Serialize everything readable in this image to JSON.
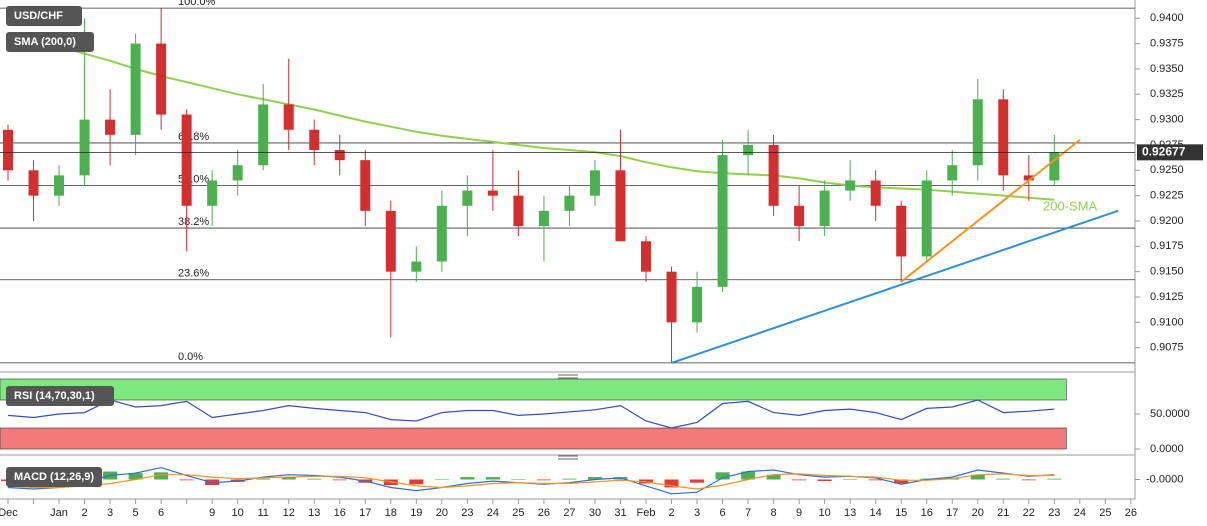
{
  "chart_data": [
    {
      "type": "candlestick",
      "title": "USD/CHF",
      "indicator": "SMA (200,0)",
      "annotation": "200-SMA",
      "categories": [
        "Dec",
        null,
        "Jan",
        "2",
        "3",
        "5",
        "6",
        null,
        "9",
        "10",
        "11",
        "12",
        "13",
        "16",
        "17",
        "18",
        "19",
        "20",
        "23",
        "24",
        "25",
        "26",
        "27",
        "30",
        "31",
        "Feb",
        "2",
        "3",
        "6",
        "7",
        "8",
        "9",
        "10",
        "13",
        "14",
        "15",
        "16",
        "17",
        "20",
        "21",
        "22",
        "23",
        "24",
        "25",
        "26"
      ],
      "open": [
        0.929,
        0.925,
        0.9225,
        0.9245,
        0.93,
        0.9285,
        0.9375,
        0.9305,
        0.9215,
        0.924,
        0.9255,
        0.9315,
        0.929,
        0.927,
        0.926,
        0.921,
        0.915,
        0.916,
        0.9215,
        0.923,
        0.9225,
        0.9195,
        0.921,
        0.9225,
        0.925,
        0.918,
        0.915,
        0.91,
        0.9135,
        0.9265,
        0.9275,
        0.9215,
        0.9195,
        0.923,
        0.924,
        0.9215,
        0.9165,
        0.924,
        0.9255,
        0.932,
        0.9245,
        0.924,
        null,
        null,
        null
      ],
      "high": [
        0.9295,
        0.926,
        0.9255,
        0.94,
        0.933,
        0.9385,
        0.941,
        0.931,
        0.925,
        0.927,
        0.9335,
        0.936,
        0.93,
        0.9285,
        0.927,
        0.922,
        0.9175,
        0.923,
        0.9245,
        0.927,
        0.925,
        0.9225,
        0.9235,
        0.926,
        0.929,
        0.9185,
        0.9155,
        0.915,
        0.928,
        0.929,
        0.9285,
        0.9235,
        0.924,
        0.926,
        0.925,
        0.922,
        0.925,
        0.927,
        0.934,
        0.933,
        0.9265,
        0.9285,
        null,
        null,
        null
      ],
      "low": [
        0.924,
        0.92,
        0.9215,
        0.9235,
        0.9255,
        0.9265,
        0.929,
        0.917,
        0.9195,
        0.9225,
        0.925,
        0.927,
        0.9255,
        0.9245,
        0.9195,
        0.9085,
        0.914,
        0.915,
        0.9185,
        0.921,
        0.9185,
        0.916,
        0.9195,
        0.9215,
        0.918,
        0.914,
        0.906,
        0.909,
        0.913,
        0.9245,
        0.9205,
        0.918,
        0.9185,
        0.922,
        0.92,
        0.914,
        0.916,
        0.9225,
        0.924,
        0.923,
        0.922,
        0.9235,
        null,
        null,
        null
      ],
      "close": [
        0.925,
        0.9225,
        0.9245,
        0.93,
        0.9285,
        0.9375,
        0.9305,
        0.9215,
        0.924,
        0.9255,
        0.9315,
        0.929,
        0.927,
        0.926,
        0.921,
        0.915,
        0.916,
        0.9215,
        0.923,
        0.9225,
        0.9195,
        0.921,
        0.9225,
        0.925,
        0.918,
        0.915,
        0.91,
        0.9135,
        0.9265,
        0.9275,
        0.9215,
        0.9195,
        0.923,
        0.924,
        0.9215,
        0.9165,
        0.924,
        0.9255,
        0.932,
        0.9245,
        0.924,
        0.9268,
        null,
        null,
        null
      ],
      "sma": [
        0.9385,
        0.938,
        0.9372,
        0.9365,
        0.9358,
        0.935,
        0.9343,
        0.9337,
        0.9331,
        0.9325,
        0.932,
        0.9315,
        0.931,
        0.9304,
        0.9298,
        0.9293,
        0.9288,
        0.9284,
        0.9281,
        0.9278,
        0.9275,
        0.9272,
        0.927,
        0.9268,
        0.9264,
        0.9258,
        0.9253,
        0.9249,
        0.9247,
        0.9246,
        0.9245,
        0.9242,
        0.9238,
        0.9235,
        0.9233,
        0.9232,
        0.9231,
        0.9229,
        0.9227,
        0.9225,
        0.9223,
        0.9221,
        null,
        null,
        null
      ],
      "up_color": "#4caf50",
      "down_color": "#d32f2f",
      "sma_color": "#8fd14f",
      "fib_levels": [
        {
          "value": 0.941,
          "label": "100.0%"
        },
        {
          "value": 0.9277,
          "label": "61.8%"
        },
        {
          "value": 0.9235,
          "label": "50.0%"
        },
        {
          "value": 0.9193,
          "label": "38.2%"
        },
        {
          "value": 0.9142,
          "label": "23.6%"
        },
        {
          "value": 0.906,
          "label": "0.0%"
        }
      ],
      "last_price": 0.92677,
      "trendlines": [
        {
          "color": "#f7931e",
          "x": [
            35,
            42
          ],
          "y": [
            0.914,
            0.928
          ]
        },
        {
          "color": "#2f8fd8",
          "x": [
            26,
            43.5
          ],
          "y": [
            0.906,
            0.921
          ]
        }
      ],
      "ylim": [
        0.9053,
        0.9418
      ],
      "yticks": [
        {
          "value": 0.94,
          "label": "0.9400"
        },
        {
          "value": 0.9375,
          "label": "0.9375"
        },
        {
          "value": 0.935,
          "label": "0.9350"
        },
        {
          "value": 0.9325,
          "label": "0.9325"
        },
        {
          "value": 0.93,
          "label": "0.9300"
        },
        {
          "value": 0.9275,
          "label": "0.9275"
        },
        {
          "value": 0.925,
          "label": "0.9250"
        },
        {
          "value": 0.9225,
          "label": "0.9225"
        },
        {
          "value": 0.92,
          "label": "0.9200"
        },
        {
          "value": 0.9175,
          "label": "0.9175"
        },
        {
          "value": 0.915,
          "label": "0.9150"
        },
        {
          "value": 0.9125,
          "label": "0.9125"
        },
        {
          "value": 0.91,
          "label": "0.9100"
        },
        {
          "value": 0.9075,
          "label": "0.9075"
        }
      ]
    },
    {
      "type": "line",
      "title": "RSI (14,70,30,1)",
      "color": "#3050c0",
      "overbought": 70,
      "oversold": 30,
      "values": [
        48,
        45,
        50,
        52,
        70,
        60,
        62,
        68,
        45,
        50,
        55,
        62,
        58,
        55,
        52,
        42,
        40,
        52,
        55,
        55,
        48,
        50,
        53,
        56,
        62,
        40,
        30,
        38,
        65,
        68,
        52,
        48,
        55,
        57,
        52,
        42,
        58,
        60,
        70,
        52,
        54,
        57,
        null,
        null,
        null
      ],
      "ylim": [
        0,
        100
      ],
      "yticks": [
        {
          "value": 50,
          "label": "50.0000"
        },
        {
          "value": 0,
          "label": "0.0000"
        }
      ]
    },
    {
      "type": "macd",
      "title": "MACD (12,26,9)",
      "macd_color": "#2f6fd8",
      "signal_color": "#f7931e",
      "macd": [
        -0.001,
        -0.0012,
        -0.001,
        -0.0003,
        0.0005,
        0.0008,
        0.0015,
        0.0005,
        -0.0004,
        -0.0002,
        0.0003,
        0.0006,
        0.0005,
        0.0003,
        -0.0002,
        -0.001,
        -0.0014,
        -0.001,
        -0.0005,
        -0.0002,
        -0.0004,
        -0.0006,
        -0.0004,
        0,
        0.0002,
        -0.0008,
        -0.0018,
        -0.0016,
        0.0002,
        0.001,
        0.0012,
        0.0006,
        0.0003,
        0.0004,
        0.0002,
        -0.0006,
        0,
        0.0003,
        0.0012,
        0.0008,
        0.0004,
        0.0006,
        null,
        null,
        null
      ],
      "signal": [
        -0.0008,
        -0.001,
        -0.001,
        -0.0008,
        -0.0005,
        0,
        0.0006,
        0.0006,
        0.0003,
        0.0001,
        0.0002,
        0.0003,
        0.0004,
        0.0004,
        0.0002,
        -0.0003,
        -0.0008,
        -0.001,
        -0.0008,
        -0.0005,
        -0.0004,
        -0.0005,
        -0.0005,
        -0.0003,
        -0.0001,
        -0.0003,
        -0.0008,
        -0.0012,
        -0.0007,
        0,
        0.0006,
        0.0007,
        0.0005,
        0.0004,
        0.0003,
        -0.0001,
        -0.0001,
        0.0001,
        0.0006,
        0.0007,
        0.0005,
        0.0005,
        null,
        null,
        null
      ],
      "histogram": [
        -0.0002,
        -0.0002,
        0,
        0.0005,
        0.001,
        0.0008,
        0.0009,
        -0.0001,
        -0.0007,
        -0.0003,
        0.0001,
        0.0003,
        0.0001,
        -0.0001,
        -0.0004,
        -0.0007,
        -0.0006,
        0,
        0.0003,
        0.0003,
        0,
        -0.0001,
        0.0001,
        0.0003,
        0.0003,
        -0.0005,
        -0.001,
        -0.0004,
        0.0009,
        0.001,
        0.0006,
        -0.0001,
        -0.0002,
        0,
        -0.0001,
        -0.0005,
        0.0001,
        0.0002,
        0.0006,
        0.0001,
        -0.0001,
        0.0001,
        null,
        null,
        null
      ],
      "ylim": [
        -0.0022,
        0.0022
      ],
      "yticks": [
        {
          "value": 0,
          "label": "-0.0000"
        }
      ]
    }
  ]
}
